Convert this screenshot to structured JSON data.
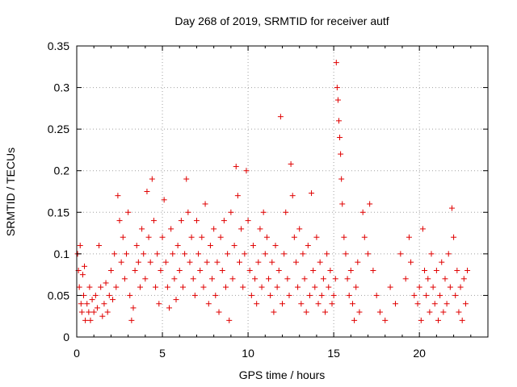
{
  "chart_data": {
    "type": "scatter",
    "title": "Day 268 of 2019, SRMTID for receiver autf",
    "xlabel": "GPS time / hours",
    "ylabel": "SRMTID / TECUs",
    "xlim": [
      0,
      24
    ],
    "ylim": [
      0,
      0.35
    ],
    "x_ticks": [
      "0",
      "5",
      "10",
      "15",
      "20"
    ],
    "y_ticks": [
      "0",
      "0.05",
      "0.1",
      "0.15",
      "0.2",
      "0.25",
      "0.3",
      "0.35"
    ],
    "grid": true,
    "marker": "+",
    "series_color": "#e00000",
    "series": [
      {
        "name": "SRMTID",
        "points": [
          [
            0.05,
            0.1
          ],
          [
            0.1,
            0.08
          ],
          [
            0.15,
            0.06
          ],
          [
            0.2,
            0.11
          ],
          [
            0.25,
            0.04
          ],
          [
            0.3,
            0.03
          ],
          [
            0.35,
            0.075
          ],
          [
            0.4,
            0.05
          ],
          [
            0.45,
            0.085
          ],
          [
            0.5,
            0.02
          ],
          [
            0.6,
            0.04
          ],
          [
            0.7,
            0.03
          ],
          [
            0.75,
            0.06
          ],
          [
            0.8,
            0.02
          ],
          [
            0.9,
            0.045
          ],
          [
            1.0,
            0.03
          ],
          [
            1.1,
            0.05
          ],
          [
            1.2,
            0.035
          ],
          [
            1.3,
            0.11
          ],
          [
            1.4,
            0.06
          ],
          [
            1.5,
            0.025
          ],
          [
            1.6,
            0.04
          ],
          [
            1.7,
            0.065
          ],
          [
            1.8,
            0.03
          ],
          [
            1.9,
            0.05
          ],
          [
            2.0,
            0.08
          ],
          [
            2.1,
            0.045
          ],
          [
            2.2,
            0.1
          ],
          [
            2.3,
            0.06
          ],
          [
            2.4,
            0.17
          ],
          [
            2.5,
            0.14
          ],
          [
            2.6,
            0.09
          ],
          [
            2.7,
            0.12
          ],
          [
            2.8,
            0.07
          ],
          [
            2.9,
            0.1
          ],
          [
            3.0,
            0.15
          ],
          [
            3.1,
            0.05
          ],
          [
            3.2,
            0.02
          ],
          [
            3.3,
            0.035
          ],
          [
            3.4,
            0.08
          ],
          [
            3.5,
            0.11
          ],
          [
            3.6,
            0.09
          ],
          [
            3.7,
            0.06
          ],
          [
            3.8,
            0.13
          ],
          [
            3.9,
            0.1
          ],
          [
            4.0,
            0.07
          ],
          [
            4.1,
            0.175
          ],
          [
            4.2,
            0.12
          ],
          [
            4.3,
            0.09
          ],
          [
            4.4,
            0.19
          ],
          [
            4.5,
            0.14
          ],
          [
            4.6,
            0.06
          ],
          [
            4.7,
            0.1
          ],
          [
            4.8,
            0.04
          ],
          [
            4.9,
            0.08
          ],
          [
            5.0,
            0.12
          ],
          [
            5.1,
            0.165
          ],
          [
            5.2,
            0.09
          ],
          [
            5.3,
            0.06
          ],
          [
            5.4,
            0.035
          ],
          [
            5.5,
            0.13
          ],
          [
            5.6,
            0.1
          ],
          [
            5.7,
            0.07
          ],
          [
            5.8,
            0.045
          ],
          [
            5.9,
            0.11
          ],
          [
            6.0,
            0.08
          ],
          [
            6.1,
            0.14
          ],
          [
            6.2,
            0.06
          ],
          [
            6.3,
            0.1
          ],
          [
            6.4,
            0.19
          ],
          [
            6.5,
            0.15
          ],
          [
            6.6,
            0.09
          ],
          [
            6.7,
            0.12
          ],
          [
            6.8,
            0.07
          ],
          [
            6.9,
            0.05
          ],
          [
            7.0,
            0.14
          ],
          [
            7.1,
            0.1
          ],
          [
            7.2,
            0.08
          ],
          [
            7.3,
            0.12
          ],
          [
            7.4,
            0.06
          ],
          [
            7.5,
            0.16
          ],
          [
            7.6,
            0.09
          ],
          [
            7.7,
            0.04
          ],
          [
            7.8,
            0.11
          ],
          [
            7.9,
            0.07
          ],
          [
            8.0,
            0.13
          ],
          [
            8.1,
            0.05
          ],
          [
            8.2,
            0.09
          ],
          [
            8.3,
            0.03
          ],
          [
            8.4,
            0.12
          ],
          [
            8.5,
            0.08
          ],
          [
            8.6,
            0.14
          ],
          [
            8.7,
            0.06
          ],
          [
            8.8,
            0.1
          ],
          [
            8.9,
            0.02
          ],
          [
            9.0,
            0.15
          ],
          [
            9.1,
            0.07
          ],
          [
            9.2,
            0.11
          ],
          [
            9.3,
            0.205
          ],
          [
            9.4,
            0.17
          ],
          [
            9.5,
            0.09
          ],
          [
            9.6,
            0.13
          ],
          [
            9.7,
            0.06
          ],
          [
            9.8,
            0.1
          ],
          [
            9.9,
            0.2
          ],
          [
            10.0,
            0.14
          ],
          [
            10.1,
            0.08
          ],
          [
            10.2,
            0.05
          ],
          [
            10.3,
            0.11
          ],
          [
            10.4,
            0.07
          ],
          [
            10.5,
            0.04
          ],
          [
            10.6,
            0.09
          ],
          [
            10.7,
            0.13
          ],
          [
            10.8,
            0.06
          ],
          [
            10.9,
            0.15
          ],
          [
            11.0,
            0.1
          ],
          [
            11.1,
            0.12
          ],
          [
            11.2,
            0.07
          ],
          [
            11.3,
            0.05
          ],
          [
            11.4,
            0.09
          ],
          [
            11.5,
            0.03
          ],
          [
            11.6,
            0.11
          ],
          [
            11.7,
            0.06
          ],
          [
            11.8,
            0.08
          ],
          [
            11.9,
            0.265
          ],
          [
            12.0,
            0.04
          ],
          [
            12.1,
            0.1
          ],
          [
            12.2,
            0.15
          ],
          [
            12.3,
            0.07
          ],
          [
            12.4,
            0.05
          ],
          [
            12.5,
            0.208
          ],
          [
            12.6,
            0.17
          ],
          [
            12.7,
            0.12
          ],
          [
            12.8,
            0.09
          ],
          [
            12.9,
            0.06
          ],
          [
            13.0,
            0.13
          ],
          [
            13.1,
            0.04
          ],
          [
            13.2,
            0.1
          ],
          [
            13.3,
            0.07
          ],
          [
            13.4,
            0.03
          ],
          [
            13.5,
            0.11
          ],
          [
            13.6,
            0.05
          ],
          [
            13.7,
            0.173
          ],
          [
            13.8,
            0.08
          ],
          [
            13.9,
            0.06
          ],
          [
            14.0,
            0.12
          ],
          [
            14.1,
            0.04
          ],
          [
            14.2,
            0.09
          ],
          [
            14.3,
            0.05
          ],
          [
            14.4,
            0.07
          ],
          [
            14.5,
            0.03
          ],
          [
            14.6,
            0.1
          ],
          [
            14.7,
            0.06
          ],
          [
            14.8,
            0.08
          ],
          [
            14.9,
            0.04
          ],
          [
            15.0,
            0.05
          ],
          [
            15.1,
            0.07
          ],
          [
            15.15,
            0.33
          ],
          [
            15.2,
            0.3
          ],
          [
            15.25,
            0.285
          ],
          [
            15.3,
            0.26
          ],
          [
            15.35,
            0.24
          ],
          [
            15.4,
            0.22
          ],
          [
            15.45,
            0.19
          ],
          [
            15.5,
            0.16
          ],
          [
            15.6,
            0.12
          ],
          [
            15.7,
            0.1
          ],
          [
            15.8,
            0.07
          ],
          [
            15.9,
            0.05
          ],
          [
            16.0,
            0.08
          ],
          [
            16.1,
            0.04
          ],
          [
            16.2,
            0.02
          ],
          [
            16.3,
            0.06
          ],
          [
            16.4,
            0.09
          ],
          [
            16.5,
            0.03
          ],
          [
            16.7,
            0.15
          ],
          [
            16.8,
            0.12
          ],
          [
            17.0,
            0.1
          ],
          [
            17.1,
            0.16
          ],
          [
            17.3,
            0.08
          ],
          [
            17.5,
            0.05
          ],
          [
            17.7,
            0.03
          ],
          [
            18.0,
            0.02
          ],
          [
            18.3,
            0.06
          ],
          [
            18.6,
            0.04
          ],
          [
            18.9,
            0.1
          ],
          [
            19.2,
            0.07
          ],
          [
            19.4,
            0.12
          ],
          [
            19.5,
            0.09
          ],
          [
            19.7,
            0.05
          ],
          [
            19.9,
            0.04
          ],
          [
            20.0,
            0.06
          ],
          [
            20.1,
            0.02
          ],
          [
            20.2,
            0.13
          ],
          [
            20.3,
            0.08
          ],
          [
            20.4,
            0.05
          ],
          [
            20.5,
            0.07
          ],
          [
            20.6,
            0.03
          ],
          [
            20.7,
            0.1
          ],
          [
            20.8,
            0.06
          ],
          [
            20.9,
            0.04
          ],
          [
            21.0,
            0.08
          ],
          [
            21.1,
            0.02
          ],
          [
            21.2,
            0.05
          ],
          [
            21.3,
            0.09
          ],
          [
            21.4,
            0.03
          ],
          [
            21.5,
            0.07
          ],
          [
            21.6,
            0.04
          ],
          [
            21.7,
            0.1
          ],
          [
            21.8,
            0.06
          ],
          [
            21.9,
            0.155
          ],
          [
            22.0,
            0.12
          ],
          [
            22.1,
            0.05
          ],
          [
            22.2,
            0.08
          ],
          [
            22.3,
            0.03
          ],
          [
            22.4,
            0.06
          ],
          [
            22.5,
            0.02
          ],
          [
            22.6,
            0.07
          ],
          [
            22.7,
            0.04
          ],
          [
            22.8,
            0.08
          ]
        ]
      }
    ]
  }
}
